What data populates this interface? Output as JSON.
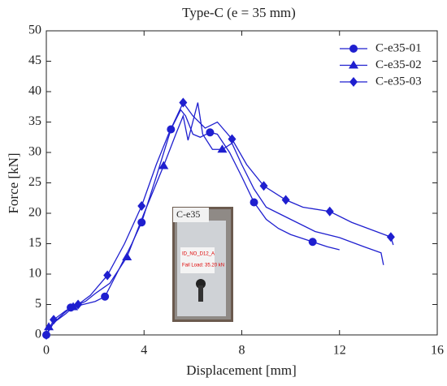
{
  "chart_data": {
    "type": "line",
    "title": "Type-C (e = 35 mm)",
    "x_label": "Displacement [mm]",
    "y_label": "Force [kN]",
    "xlim": [
      0,
      16
    ],
    "xticks": [
      0,
      4,
      8,
      12,
      16
    ],
    "ylim": [
      0,
      50
    ],
    "yticks": [
      0,
      5,
      10,
      15,
      20,
      25,
      30,
      35,
      40,
      45,
      50
    ],
    "legend": "top-right",
    "series": [
      {
        "name": "C-e35-01",
        "color": "#1f1fcf",
        "marker": "circle",
        "x": [
          0,
          0.3,
          0.7,
          1,
          1.5,
          2,
          2.4,
          3,
          3.5,
          3.9,
          4.5,
          5.1,
          5.5,
          5.7,
          6.0,
          6.3,
          6.7,
          7,
          7.5,
          8,
          8.5,
          9,
          9.5,
          10,
          10.9,
          11.5,
          12
        ],
        "values": [
          0,
          2,
          3.5,
          4.5,
          5,
          5.5,
          6.3,
          11,
          15,
          18.5,
          26,
          33.8,
          37,
          36,
          33,
          32.5,
          33.3,
          33,
          30,
          26,
          21.8,
          19,
          17.5,
          16.5,
          15.3,
          14.5,
          14
        ],
        "markers": {
          "x": [
            0,
            1,
            2.4,
            3.9,
            5.1,
            6.7,
            8.5,
            10.9
          ],
          "values": [
            0,
            4.5,
            6.3,
            18.5,
            33.8,
            33.3,
            21.8,
            15.3
          ]
        }
      },
      {
        "name": "C-e35-02",
        "color": "#1f1fcf",
        "marker": "triangle",
        "x": [
          0,
          0.3,
          0.8,
          1.1,
          1.6,
          2,
          2.6,
          3.3,
          4,
          4.8,
          5.3,
          5.6,
          5.8,
          6.2,
          6.4,
          6.8,
          7.2,
          7.6,
          8,
          8.5,
          9,
          9.5,
          10,
          11,
          12,
          13,
          13.7,
          13.8
        ],
        "values": [
          0,
          2,
          3.5,
          4.6,
          5.5,
          6.8,
          8.5,
          12.8,
          20,
          27.8,
          33,
          36,
          32,
          38.2,
          33,
          30.5,
          30.5,
          31.5,
          28,
          24,
          21,
          20,
          19,
          17,
          16,
          14.5,
          13.5,
          11.5
        ],
        "markers": {
          "x": [
            0.1,
            1.1,
            3.3,
            4.8,
            7.2
          ],
          "values": [
            1.3,
            4.6,
            12.8,
            27.8,
            30.5
          ]
        }
      },
      {
        "name": "C-e35-03",
        "color": "#1f1fcf",
        "marker": "diamond",
        "x": [
          0,
          0.3,
          0.8,
          1.3,
          1.8,
          2.5,
          3.2,
          3.9,
          4.5,
          5,
          5.6,
          6,
          6.5,
          7,
          7.6,
          8.2,
          8.9,
          9.8,
          10.5,
          11.6,
          12.5,
          13.5,
          14.1,
          14.2
        ],
        "values": [
          0,
          2.5,
          4,
          5,
          6.5,
          9.8,
          15,
          21.2,
          28,
          33,
          38.2,
          36,
          34,
          35,
          32.2,
          28,
          24.5,
          22.2,
          21,
          20.3,
          18.5,
          17,
          16.1,
          14.8
        ],
        "markers": {
          "x": [
            0,
            0.3,
            1.3,
            2.5,
            3.9,
            5.6,
            7.6,
            8.9,
            9.8,
            11.6,
            14.1
          ],
          "values": [
            0,
            2.5,
            5,
            9.8,
            21.2,
            38.2,
            32.2,
            24.5,
            22.2,
            20.3,
            16.1
          ]
        }
      }
    ],
    "inset": {
      "caption": "C-e35",
      "label_id": "ID_NO_D12_A",
      "label_load": "Fail Load: 35.20 kN"
    }
  }
}
